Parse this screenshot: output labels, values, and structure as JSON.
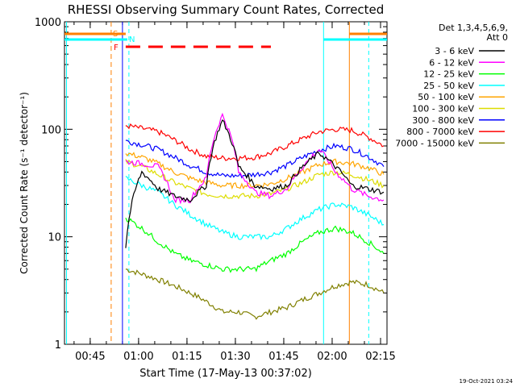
{
  "chart_data": {
    "type": "line",
    "title": "RHESSI Observing Summary Count Rates, Corrected",
    "xlabel": "Start Time (17-May-13 00:37:02)",
    "ylabel": "Corrected Count Rate (s⁻¹ detector⁻¹)",
    "y_scale": "log",
    "ylim": [
      1,
      1000
    ],
    "xlim": [
      "00:37:02",
      "02:17:00"
    ],
    "x_tick_labels": [
      "00:45",
      "01:00",
      "01:15",
      "01:30",
      "01:45",
      "02:00",
      "02:15"
    ],
    "y_tick_labels": [
      "1",
      "10",
      "100",
      "1000"
    ],
    "legend_header": [
      "Det 1,3,4,5,6,9,",
      "Att 0"
    ],
    "legend_position": "right",
    "timestamp": "19-Oct-2021 03:24",
    "time_minutes": [
      0,
      5,
      10,
      15,
      20,
      25,
      30,
      35,
      40,
      45,
      50,
      55,
      60,
      65,
      70,
      75,
      80
    ],
    "series": [
      {
        "name": "3 - 6 keV",
        "color": "#000000",
        "values": [
          8,
          40,
          28,
          24,
          22,
          30,
          120,
          45,
          30,
          28,
          30,
          45,
          60,
          45,
          30,
          28,
          26
        ]
      },
      {
        "name": "6 - 12 keV",
        "color": "#ff00ff",
        "values": [
          50,
          48,
          45,
          22,
          22,
          35,
          135,
          40,
          26,
          24,
          28,
          45,
          65,
          40,
          28,
          24,
          22
        ]
      },
      {
        "name": "12 - 25 keV",
        "color": "#00ff00",
        "values": [
          15,
          12,
          9,
          7,
          6,
          5.5,
          5,
          5,
          5,
          6,
          7,
          9,
          11,
          12,
          11,
          9,
          7
        ]
      },
      {
        "name": "25 - 50 keV",
        "color": "#00ffff",
        "values": [
          35,
          30,
          26,
          20,
          16,
          13,
          11,
          10,
          10,
          10,
          12,
          15,
          18,
          20,
          19,
          16,
          13
        ]
      },
      {
        "name": "50 - 100 keV",
        "color": "#ffa500",
        "values": [
          60,
          55,
          48,
          40,
          35,
          32,
          30,
          30,
          30,
          31,
          35,
          40,
          47,
          50,
          48,
          44,
          38
        ]
      },
      {
        "name": "100 - 300 keV",
        "color": "#dddd00",
        "values": [
          50,
          45,
          38,
          32,
          28,
          25,
          24,
          24,
          24,
          25,
          28,
          32,
          38,
          40,
          38,
          34,
          30
        ]
      },
      {
        "name": "300 - 800 keV",
        "color": "#0000ff",
        "values": [
          78,
          72,
          65,
          55,
          46,
          40,
          37,
          37,
          38,
          40,
          46,
          55,
          64,
          70,
          66,
          56,
          45
        ]
      },
      {
        "name": "800 - 7000 keV",
        "color": "#ff0000",
        "values": [
          108,
          102,
          95,
          80,
          65,
          56,
          54,
          54,
          55,
          60,
          70,
          82,
          95,
          100,
          98,
          85,
          70
        ]
      },
      {
        "name": "7000 - 15000 keV",
        "color": "#808000",
        "values": [
          5,
          4.5,
          4,
          3.5,
          3,
          2.5,
          2,
          2,
          1.8,
          2,
          2.2,
          2.6,
          3,
          3.5,
          3.8,
          3.6,
          3
        ]
      }
    ],
    "flags": [
      {
        "label": "S",
        "color": "#ff8000"
      },
      {
        "label": "N",
        "color": "#00ffff"
      },
      {
        "label": "F",
        "color": "#ff0000"
      }
    ]
  }
}
